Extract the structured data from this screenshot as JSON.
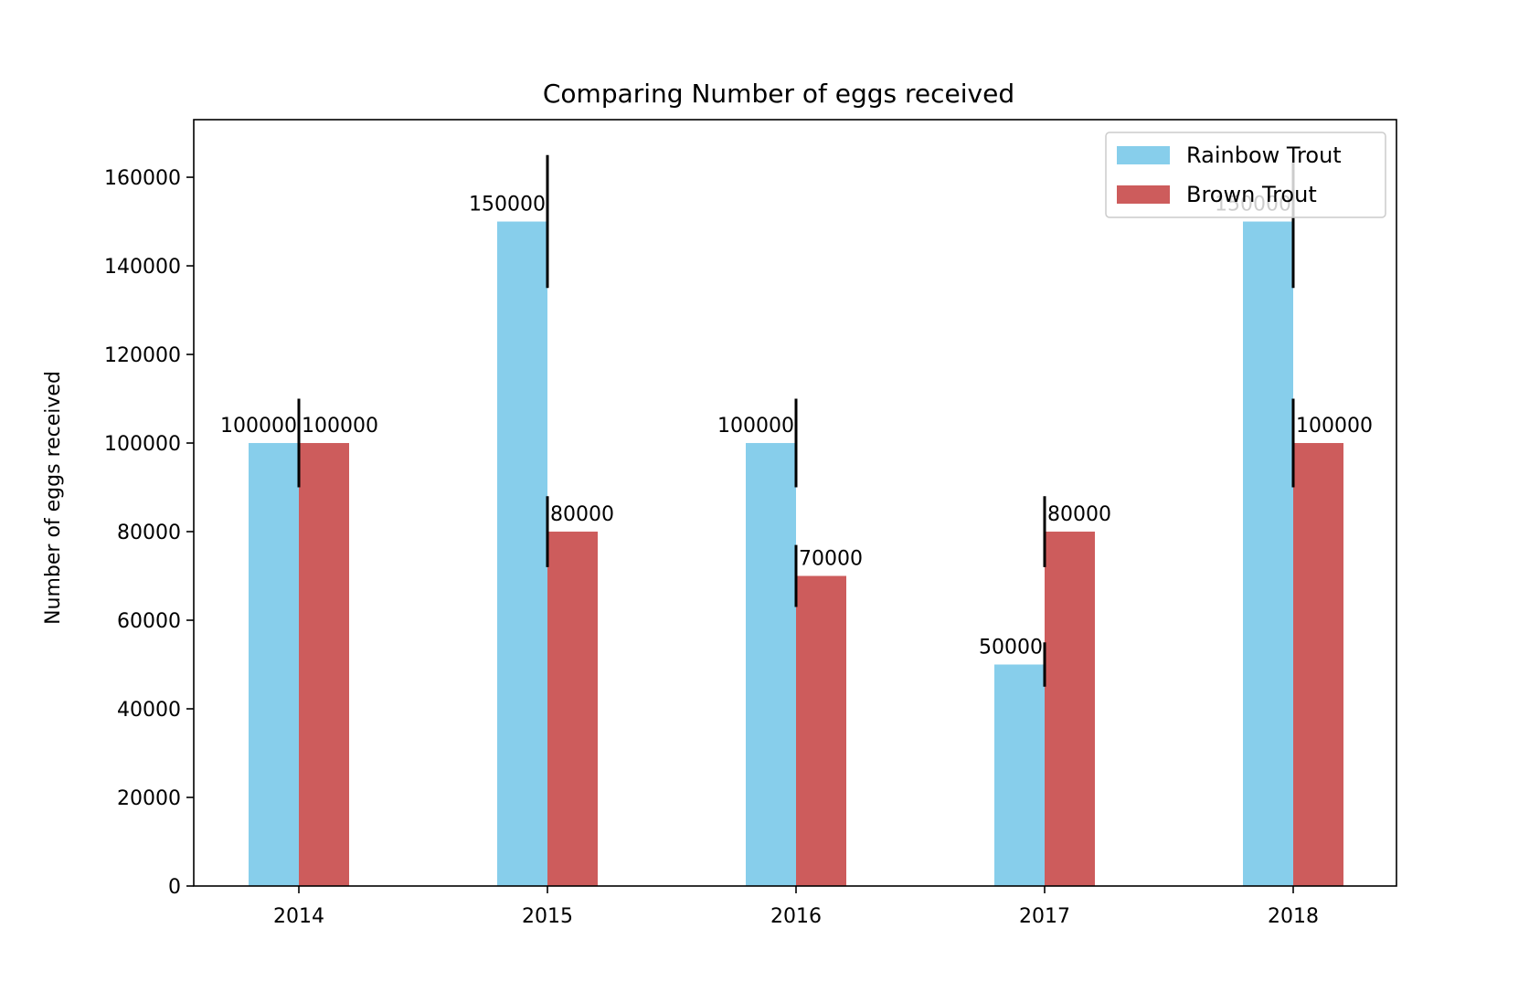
{
  "chart_data": {
    "type": "bar",
    "title": "Comparing Number of eggs received",
    "xlabel": "",
    "ylabel": "Number of eggs received",
    "categories": [
      "2014",
      "2015",
      "2016",
      "2017",
      "2018"
    ],
    "ylim": [
      0,
      173000
    ],
    "yticks": [
      0,
      20000,
      40000,
      60000,
      80000,
      100000,
      120000,
      140000,
      160000
    ],
    "legend_position": "top-right",
    "series": [
      {
        "name": "Rainbow Trout",
        "color": "#87CEEB",
        "values": [
          100000,
          150000,
          100000,
          50000,
          150000
        ],
        "errors": [
          10000,
          15000,
          10000,
          5000,
          15000
        ],
        "labels": [
          "100000",
          "150000",
          "100000",
          "50000",
          "150000"
        ]
      },
      {
        "name": "Brown Trout",
        "color": "#CD5C5C",
        "values": [
          100000,
          80000,
          70000,
          80000,
          100000
        ],
        "errors": [
          10000,
          8000,
          7000,
          8000,
          10000
        ],
        "labels": [
          "100000",
          "80000",
          "70000",
          "80000",
          "100000"
        ]
      }
    ]
  }
}
